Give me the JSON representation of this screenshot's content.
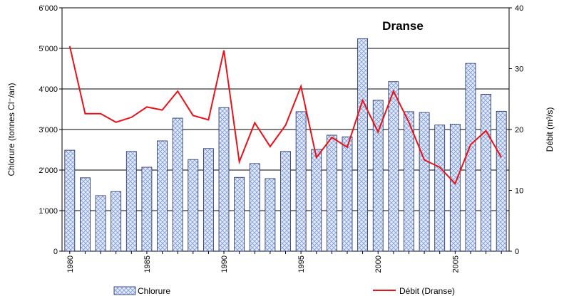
{
  "chart_data": {
    "type": "bar_line",
    "title": "Dranse",
    "ylabel": "Chlorure (tonnes Cl⁻/an)",
    "y2label": "Débit (m³/s)",
    "categories": [
      "1980",
      null,
      null,
      null,
      null,
      "1985",
      null,
      null,
      null,
      null,
      "1990",
      null,
      null,
      null,
      null,
      "1995",
      null,
      null,
      null,
      null,
      "2000",
      null,
      null,
      null,
      null,
      "2005",
      null,
      null,
      null
    ],
    "series": [
      {
        "name": "Chlorure",
        "type": "bar",
        "color": "#7f9bd8",
        "values": [
          2490,
          1810,
          1370,
          1470,
          2460,
          2070,
          2720,
          3280,
          2260,
          2530,
          3540,
          1820,
          2160,
          1790,
          2460,
          3440,
          2510,
          2860,
          2820,
          5240,
          3720,
          4180,
          3440,
          3420,
          3110,
          3130,
          4630,
          3870,
          3450
        ]
      },
      {
        "name": "Débit (Dranse)",
        "type": "line",
        "axis": "y2",
        "color": "#e8121b",
        "values": [
          33.7,
          22.6,
          22.6,
          21.2,
          22.0,
          23.7,
          23.2,
          26.3,
          22.3,
          21.6,
          33.0,
          14.7,
          21.1,
          17.2,
          20.7,
          27.1,
          15.4,
          18.7,
          17.1,
          24.8,
          19.6,
          26.3,
          21.2,
          15.0,
          13.8,
          11.1,
          17.5,
          19.8,
          15.4
        ]
      }
    ],
    "ylim": [
      0,
      6000
    ],
    "yticks": [
      0,
      {
        "value": 1000,
        "label": "1'000"
      },
      {
        "value": 2000,
        "label": "2'000"
      },
      {
        "value": 3000,
        "label": "3'000"
      },
      {
        "value": 4000,
        "label": "4'000"
      },
      {
        "value": 5000,
        "label": "5'000"
      },
      {
        "value": 6000,
        "label": "6'000"
      }
    ],
    "y2lim": [
      0,
      40
    ],
    "y2ticks": [
      0,
      10,
      20,
      30,
      40
    ],
    "grid": true,
    "legend": "bottom"
  }
}
